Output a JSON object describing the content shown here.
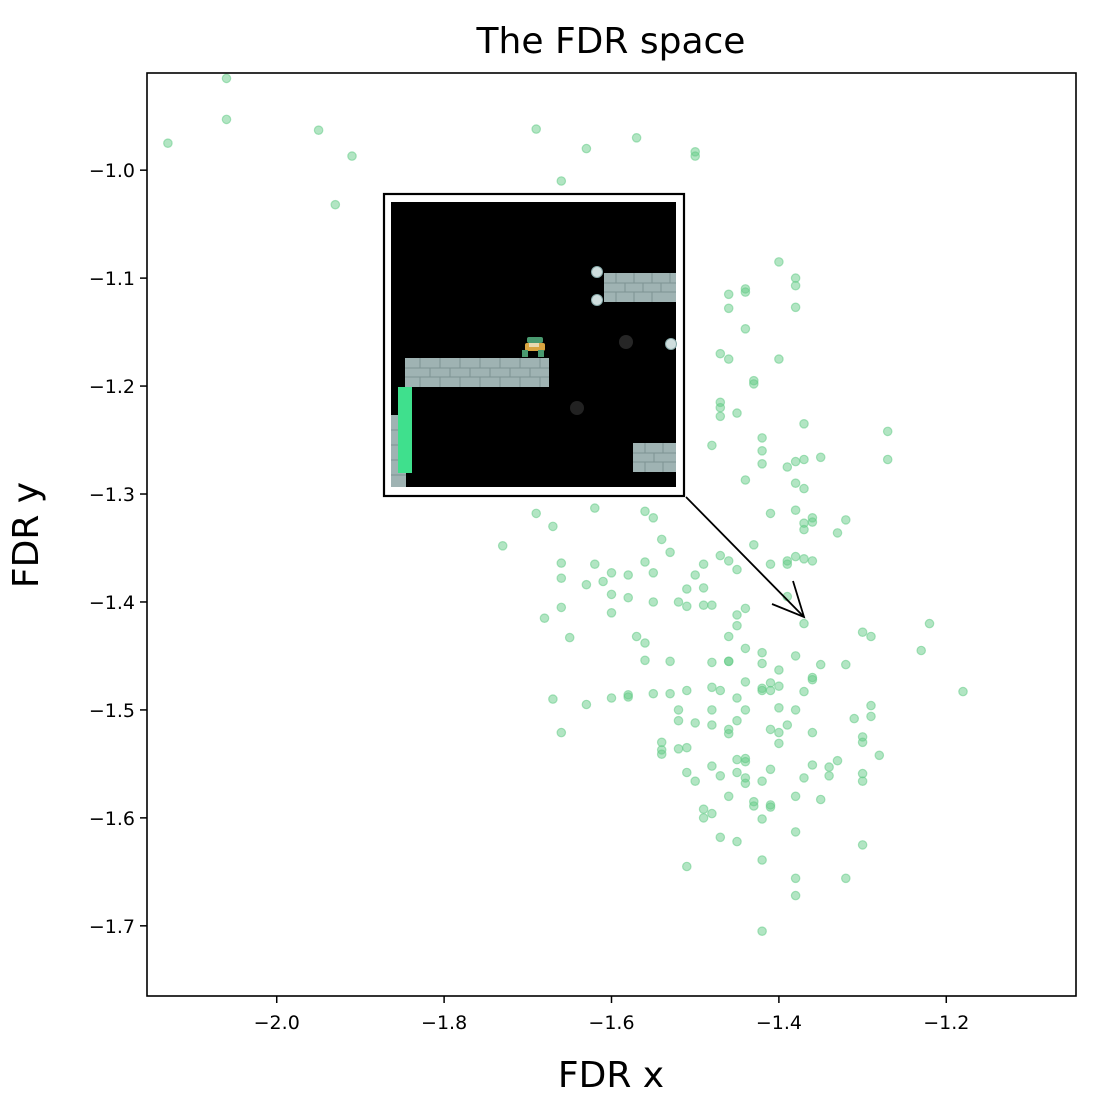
{
  "chart_data": {
    "type": "scatter",
    "title": "The FDR space",
    "xlabel": "FDR x",
    "ylabel": "FDR y",
    "xlim": [
      -2.155,
      -1.045
    ],
    "ylim": [
      -1.765,
      -0.91
    ],
    "xticks": [
      -2.0,
      -1.8,
      -1.6,
      -1.4,
      -1.2
    ],
    "yticks": [
      -1.0,
      -1.1,
      -1.2,
      -1.3,
      -1.4,
      -1.5,
      -1.6,
      -1.7
    ],
    "xtick_labels": [
      "−2.0",
      "−1.8",
      "−1.6",
      "−1.4",
      "−1.2"
    ],
    "ytick_labels": [
      "−1.0",
      "−1.1",
      "−1.2",
      "−1.3",
      "−1.4",
      "−1.5",
      "−1.6",
      "−1.7"
    ],
    "grid": false,
    "point_color": "#66cc88",
    "points": [
      [
        -2.06,
        -0.915
      ],
      [
        -2.06,
        -0.953
      ],
      [
        -2.13,
        -0.975
      ],
      [
        -1.95,
        -0.963
      ],
      [
        -1.91,
        -0.987
      ],
      [
        -1.93,
        -1.032
      ],
      [
        -1.69,
        -0.962
      ],
      [
        -1.63,
        -0.98
      ],
      [
        -1.57,
        -0.97
      ],
      [
        -1.5,
        -0.983
      ],
      [
        -1.5,
        -0.987
      ],
      [
        -1.66,
        -1.01
      ],
      [
        -1.4,
        -1.085
      ],
      [
        -1.38,
        -1.1
      ],
      [
        -1.38,
        -1.107
      ],
      [
        -1.38,
        -1.127
      ],
      [
        -1.44,
        -1.11
      ],
      [
        -1.44,
        -1.113
      ],
      [
        -1.46,
        -1.115
      ],
      [
        -1.46,
        -1.128
      ],
      [
        -1.44,
        -1.147
      ],
      [
        -1.47,
        -1.17
      ],
      [
        -1.46,
        -1.175
      ],
      [
        -1.4,
        -1.175
      ],
      [
        -1.52,
        -1.19
      ],
      [
        -1.47,
        -1.215
      ],
      [
        -1.47,
        -1.22
      ],
      [
        -1.47,
        -1.228
      ],
      [
        -1.43,
        -1.195
      ],
      [
        -1.43,
        -1.198
      ],
      [
        -1.45,
        -1.225
      ],
      [
        -1.37,
        -1.235
      ],
      [
        -1.42,
        -1.248
      ],
      [
        -1.42,
        -1.26
      ],
      [
        -1.48,
        -1.255
      ],
      [
        -1.27,
        -1.242
      ],
      [
        -1.27,
        -1.268
      ],
      [
        -1.38,
        -1.27
      ],
      [
        -1.39,
        -1.275
      ],
      [
        -1.37,
        -1.268
      ],
      [
        -1.35,
        -1.266
      ],
      [
        -1.42,
        -1.272
      ],
      [
        -1.44,
        -1.287
      ],
      [
        -1.38,
        -1.29
      ],
      [
        -1.37,
        -1.295
      ],
      [
        -1.41,
        -1.318
      ],
      [
        -1.38,
        -1.315
      ],
      [
        -1.36,
        -1.322
      ],
      [
        -1.37,
        -1.327
      ],
      [
        -1.37,
        -1.333
      ],
      [
        -1.36,
        -1.326
      ],
      [
        -1.33,
        -1.336
      ],
      [
        -1.32,
        -1.324
      ],
      [
        -1.62,
        -1.313
      ],
      [
        -1.56,
        -1.316
      ],
      [
        -1.55,
        -1.322
      ],
      [
        -1.54,
        -1.342
      ],
      [
        -1.53,
        -1.354
      ],
      [
        -1.67,
        -1.33
      ],
      [
        -1.69,
        -1.318
      ],
      [
        -1.73,
        -1.348
      ],
      [
        -1.43,
        -1.347
      ],
      [
        -1.36,
        -1.362
      ],
      [
        -1.38,
        -1.358
      ],
      [
        -1.39,
        -1.362
      ],
      [
        -1.39,
        -1.365
      ],
      [
        -1.41,
        -1.365
      ],
      [
        -1.37,
        -1.36
      ],
      [
        -1.47,
        -1.357
      ],
      [
        -1.46,
        -1.362
      ],
      [
        -1.45,
        -1.37
      ],
      [
        -1.49,
        -1.365
      ],
      [
        -1.56,
        -1.363
      ],
      [
        -1.55,
        -1.373
      ],
      [
        -1.62,
        -1.365
      ],
      [
        -1.6,
        -1.373
      ],
      [
        -1.58,
        -1.375
      ],
      [
        -1.66,
        -1.364
      ],
      [
        -1.66,
        -1.378
      ],
      [
        -1.61,
        -1.381
      ],
      [
        -1.63,
        -1.384
      ],
      [
        -1.5,
        -1.375
      ],
      [
        -1.51,
        -1.388
      ],
      [
        -1.49,
        -1.387
      ],
      [
        -1.6,
        -1.393
      ],
      [
        -1.58,
        -1.396
      ],
      [
        -1.6,
        -1.41
      ],
      [
        -1.66,
        -1.405
      ],
      [
        -1.65,
        -1.433
      ],
      [
        -1.55,
        -1.4
      ],
      [
        -1.52,
        -1.4
      ],
      [
        -1.51,
        -1.404
      ],
      [
        -1.49,
        -1.403
      ],
      [
        -1.48,
        -1.403
      ],
      [
        -1.68,
        -1.415
      ],
      [
        -1.44,
        -1.406
      ],
      [
        -1.45,
        -1.412
      ],
      [
        -1.45,
        -1.422
      ],
      [
        -1.46,
        -1.432
      ],
      [
        -1.44,
        -1.443
      ],
      [
        -1.39,
        -1.395
      ],
      [
        -1.37,
        -1.42
      ],
      [
        -1.57,
        -1.432
      ],
      [
        -1.56,
        -1.438
      ],
      [
        -1.56,
        -1.454
      ],
      [
        -1.53,
        -1.455
      ],
      [
        -1.48,
        -1.456
      ],
      [
        -1.46,
        -1.455
      ],
      [
        -1.46,
        -1.455
      ],
      [
        -1.42,
        -1.447
      ],
      [
        -1.42,
        -1.457
      ],
      [
        -1.4,
        -1.463
      ],
      [
        -1.38,
        -1.45
      ],
      [
        -1.35,
        -1.458
      ],
      [
        -1.32,
        -1.458
      ],
      [
        -1.3,
        -1.428
      ],
      [
        -1.29,
        -1.432
      ],
      [
        -1.23,
        -1.445
      ],
      [
        -1.22,
        -1.42
      ],
      [
        -1.18,
        -1.483
      ],
      [
        -1.41,
        -1.475
      ],
      [
        -1.4,
        -1.478
      ],
      [
        -1.36,
        -1.472
      ],
      [
        -1.36,
        -1.47
      ],
      [
        -1.42,
        -1.48
      ],
      [
        -1.42,
        -1.482
      ],
      [
        -1.41,
        -1.482
      ],
      [
        -1.44,
        -1.474
      ],
      [
        -1.37,
        -1.483
      ],
      [
        -1.45,
        -1.489
      ],
      [
        -1.47,
        -1.482
      ],
      [
        -1.48,
        -1.479
      ],
      [
        -1.51,
        -1.482
      ],
      [
        -1.52,
        -1.5
      ],
      [
        -1.53,
        -1.485
      ],
      [
        -1.55,
        -1.485
      ],
      [
        -1.58,
        -1.486
      ],
      [
        -1.58,
        -1.488
      ],
      [
        -1.6,
        -1.489
      ],
      [
        -1.63,
        -1.495
      ],
      [
        -1.67,
        -1.49
      ],
      [
        -1.66,
        -1.521
      ],
      [
        -1.4,
        -1.498
      ],
      [
        -1.38,
        -1.5
      ],
      [
        -1.39,
        -1.514
      ],
      [
        -1.4,
        -1.521
      ],
      [
        -1.4,
        -1.531
      ],
      [
        -1.41,
        -1.518
      ],
      [
        -1.44,
        -1.5
      ],
      [
        -1.45,
        -1.51
      ],
      [
        -1.46,
        -1.518
      ],
      [
        -1.46,
        -1.522
      ],
      [
        -1.48,
        -1.514
      ],
      [
        -1.48,
        -1.5
      ],
      [
        -1.5,
        -1.512
      ],
      [
        -1.51,
        -1.535
      ],
      [
        -1.52,
        -1.51
      ],
      [
        -1.29,
        -1.496
      ],
      [
        -1.29,
        -1.506
      ],
      [
        -1.31,
        -1.508
      ],
      [
        -1.3,
        -1.525
      ],
      [
        -1.3,
        -1.53
      ],
      [
        -1.28,
        -1.542
      ],
      [
        -1.36,
        -1.521
      ],
      [
        -1.33,
        -1.547
      ],
      [
        -1.34,
        -1.553
      ],
      [
        -1.34,
        -1.561
      ],
      [
        -1.36,
        -1.551
      ],
      [
        -1.37,
        -1.563
      ],
      [
        -1.38,
        -1.58
      ],
      [
        -1.35,
        -1.583
      ],
      [
        -1.3,
        -1.559
      ],
      [
        -1.3,
        -1.566
      ],
      [
        -1.3,
        -1.625
      ],
      [
        -1.32,
        -1.656
      ],
      [
        -1.41,
        -1.555
      ],
      [
        -1.42,
        -1.566
      ],
      [
        -1.41,
        -1.588
      ],
      [
        -1.43,
        -1.589
      ],
      [
        -1.43,
        -1.585
      ],
      [
        -1.44,
        -1.568
      ],
      [
        -1.44,
        -1.548
      ],
      [
        -1.45,
        -1.546
      ],
      [
        -1.45,
        -1.558
      ],
      [
        -1.44,
        -1.563
      ],
      [
        -1.47,
        -1.561
      ],
      [
        -1.48,
        -1.552
      ],
      [
        -1.5,
        -1.566
      ],
      [
        -1.51,
        -1.558
      ],
      [
        -1.54,
        -1.541
      ],
      [
        -1.54,
        -1.53
      ],
      [
        -1.54,
        -1.537
      ],
      [
        -1.52,
        -1.536
      ],
      [
        -1.44,
        -1.545
      ],
      [
        -1.46,
        -1.58
      ],
      [
        -1.48,
        -1.596
      ],
      [
        -1.49,
        -1.592
      ],
      [
        -1.49,
        -1.6
      ],
      [
        -1.45,
        -1.622
      ],
      [
        -1.47,
        -1.618
      ],
      [
        -1.42,
        -1.601
      ],
      [
        -1.41,
        -1.59
      ],
      [
        -1.38,
        -1.613
      ],
      [
        -1.42,
        -1.639
      ],
      [
        -1.38,
        -1.656
      ],
      [
        -1.38,
        -1.672
      ],
      [
        -1.42,
        -1.705
      ],
      [
        -1.51,
        -1.645
      ]
    ],
    "inset": {
      "target_point": [
        -1.365,
        -1.418
      ],
      "frame_corner": [
        -1.505,
        -1.3
      ],
      "frame_from": [
        -1.875,
        -1.022
      ],
      "frame_to": [
        -1.505,
        -1.3
      ]
    }
  }
}
